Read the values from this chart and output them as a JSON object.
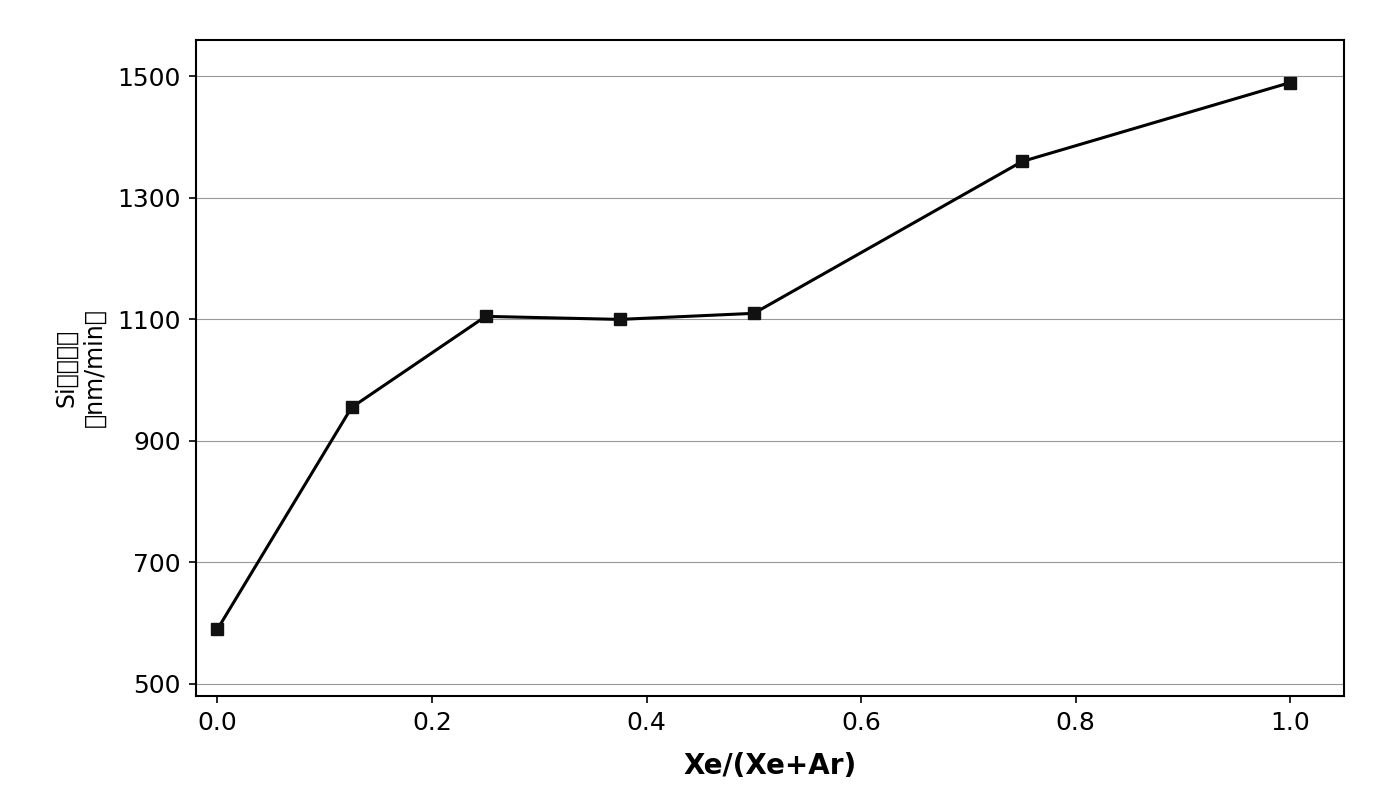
{
  "x": [
    0.0,
    0.125,
    0.25,
    0.375,
    0.5,
    0.75,
    1.0
  ],
  "y": [
    590,
    955,
    1105,
    1100,
    1110,
    1360,
    1490
  ],
  "xlabel": "Xe/(Xe+Ar)",
  "ylabel_part1": "Si",
  "ylabel_part2": "蚀刺速率",
  "ylabel_part3": "（nm/min）",
  "xlim": [
    -0.02,
    1.05
  ],
  "ylim": [
    480,
    1560
  ],
  "xticks": [
    0.0,
    0.2,
    0.4,
    0.6,
    0.8,
    1.0
  ],
  "yticks": [
    500,
    700,
    900,
    1100,
    1300,
    1500
  ],
  "line_color": "#000000",
  "marker": "s",
  "marker_size": 9,
  "marker_color": "#111111",
  "line_width": 2.2,
  "plot_bg_color": "#ffffff",
  "fig_bg_color": "#ffffff",
  "xlabel_fontsize": 20,
  "ylabel_fontsize": 17,
  "tick_fontsize": 18,
  "grid_color": "#999999",
  "grid_linewidth": 0.8,
  "spine_color": "#000000",
  "spine_linewidth": 1.5,
  "outer_border_color": "#555555",
  "outer_border_linewidth": 2.0
}
